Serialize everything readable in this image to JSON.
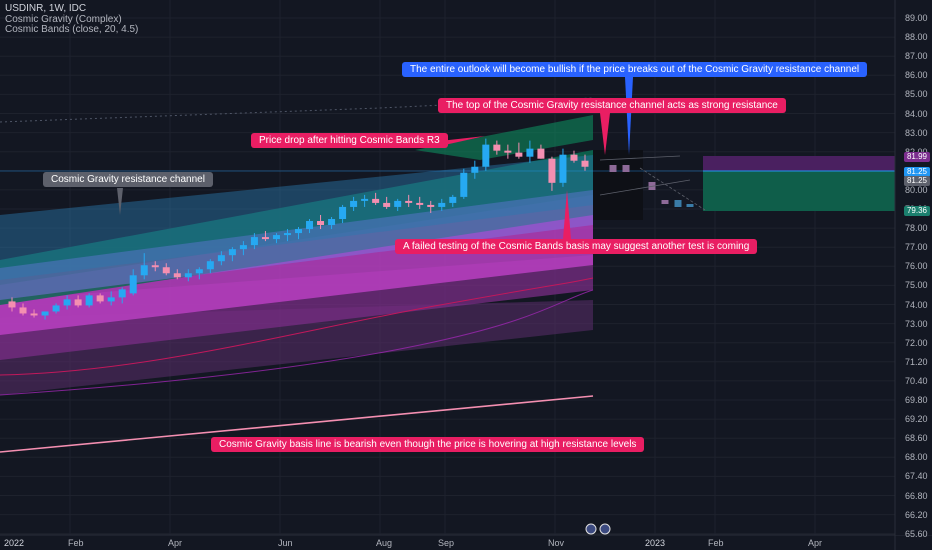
{
  "header": {
    "symbol": "USDINR, 1W, IDC",
    "indicator1": "Cosmic Gravity (Complex)",
    "indicator2": "Cosmic Bands (close, 20, 4.5)"
  },
  "callouts": {
    "bullish": "The entire outlook will become bullish if the price breaks out of the Cosmic Gravity resistance channel",
    "top": "The top of the Cosmic Gravity resistance channel acts as strong resistance",
    "drop": "Price drop after hitting Cosmic Bands R3",
    "channel": "Cosmic Gravity resistance channel",
    "failed": "A failed testing of the Cosmic Bands basis may suggest another test is coming",
    "basis": "Cosmic Gravity basis line is bearish even though the price is hovering at high resistance levels"
  },
  "price_tags": [
    {
      "value": "81.99",
      "color": "#7b2d8e"
    },
    {
      "value": "81.25",
      "color": "#2196f3"
    },
    {
      "value": "81.25",
      "color": "#5d606b"
    },
    {
      "value": "79.36",
      "color": "#1b7f6e"
    }
  ],
  "colors": {
    "up": "#26a9f2",
    "down": "#f48fb1",
    "bg": "#131722"
  },
  "chart_data": {
    "type": "candlestick",
    "yaxis": {
      "min": 65.6,
      "max": 89.0,
      "ticks": [
        "89.00",
        "88.00",
        "87.00",
        "86.00",
        "85.00",
        "84.00",
        "83.00",
        "82.00",
        "81.00",
        "80.00",
        "79.00",
        "78.00",
        "77.00",
        "76.00",
        "75.00",
        "74.00",
        "73.00",
        "72.00",
        "71.20",
        "70.40",
        "69.80",
        "69.20",
        "68.60",
        "68.00",
        "67.40",
        "66.80",
        "66.20",
        "65.60"
      ]
    },
    "xaxis": {
      "labels": [
        "2022",
        "Feb",
        "Apr",
        "Jun",
        "Aug",
        "Sep",
        "Nov",
        "2023",
        "Feb",
        "Apr"
      ]
    },
    "candles": [
      [
        74.9,
        75.1,
        74.4,
        74.6
      ],
      [
        74.6,
        74.8,
        74.2,
        74.3
      ],
      [
        74.3,
        74.5,
        74.1,
        74.2
      ],
      [
        74.2,
        74.4,
        74.0,
        74.4
      ],
      [
        74.4,
        74.8,
        74.3,
        74.7
      ],
      [
        74.7,
        75.2,
        74.5,
        75.0
      ],
      [
        75.0,
        75.2,
        74.6,
        74.7
      ],
      [
        74.7,
        75.3,
        74.6,
        75.2
      ],
      [
        75.2,
        75.3,
        74.8,
        74.9
      ],
      [
        74.9,
        75.4,
        74.7,
        75.1
      ],
      [
        75.1,
        75.6,
        74.8,
        75.5
      ],
      [
        75.3,
        76.5,
        75.2,
        76.2
      ],
      [
        76.2,
        77.3,
        76.0,
        76.7
      ],
      [
        76.7,
        76.9,
        76.4,
        76.6
      ],
      [
        76.6,
        76.8,
        76.2,
        76.3
      ],
      [
        76.3,
        76.5,
        76.0,
        76.1
      ],
      [
        76.1,
        76.5,
        75.9,
        76.3
      ],
      [
        76.3,
        76.6,
        76.0,
        76.5
      ],
      [
        76.5,
        77.0,
        76.3,
        76.9
      ],
      [
        76.9,
        77.4,
        76.7,
        77.2
      ],
      [
        77.2,
        77.6,
        76.9,
        77.5
      ],
      [
        77.5,
        77.9,
        77.2,
        77.7
      ],
      [
        77.7,
        78.3,
        77.5,
        78.1
      ],
      [
        78.1,
        78.4,
        77.9,
        78.0
      ],
      [
        78.0,
        78.3,
        77.8,
        78.2
      ],
      [
        78.2,
        78.5,
        77.9,
        78.3
      ],
      [
        78.3,
        78.6,
        78.0,
        78.5
      ],
      [
        78.5,
        79.0,
        78.3,
        78.9
      ],
      [
        78.9,
        79.2,
        78.5,
        78.7
      ],
      [
        78.7,
        79.1,
        78.5,
        79.0
      ],
      [
        79.0,
        79.7,
        78.8,
        79.6
      ],
      [
        79.6,
        80.1,
        79.4,
        79.9
      ],
      [
        79.9,
        80.2,
        79.6,
        80.0
      ],
      [
        80.0,
        80.3,
        79.7,
        79.8
      ],
      [
        79.8,
        80.1,
        79.5,
        79.6
      ],
      [
        79.6,
        80.0,
        79.4,
        79.9
      ],
      [
        79.9,
        80.2,
        79.6,
        79.8
      ],
      [
        79.8,
        80.1,
        79.5,
        79.7
      ],
      [
        79.7,
        79.9,
        79.3,
        79.6
      ],
      [
        79.6,
        80.0,
        79.4,
        79.8
      ],
      [
        79.8,
        80.2,
        79.6,
        80.1
      ],
      [
        80.1,
        81.5,
        80.0,
        81.3
      ],
      [
        81.3,
        81.9,
        81.0,
        81.6
      ],
      [
        81.6,
        83.0,
        81.4,
        82.7
      ],
      [
        82.7,
        82.9,
        82.2,
        82.4
      ],
      [
        82.4,
        82.7,
        82.0,
        82.3
      ],
      [
        82.3,
        82.8,
        82.0,
        82.1
      ],
      [
        82.1,
        82.9,
        81.8,
        82.5
      ],
      [
        82.5,
        82.7,
        82.0,
        82.0
      ],
      [
        82.0,
        82.1,
        80.4,
        80.8
      ],
      [
        80.8,
        82.5,
        80.6,
        82.2
      ],
      [
        82.2,
        82.4,
        81.8,
        81.9
      ],
      [
        81.9,
        82.2,
        81.4,
        81.6
      ]
    ]
  }
}
